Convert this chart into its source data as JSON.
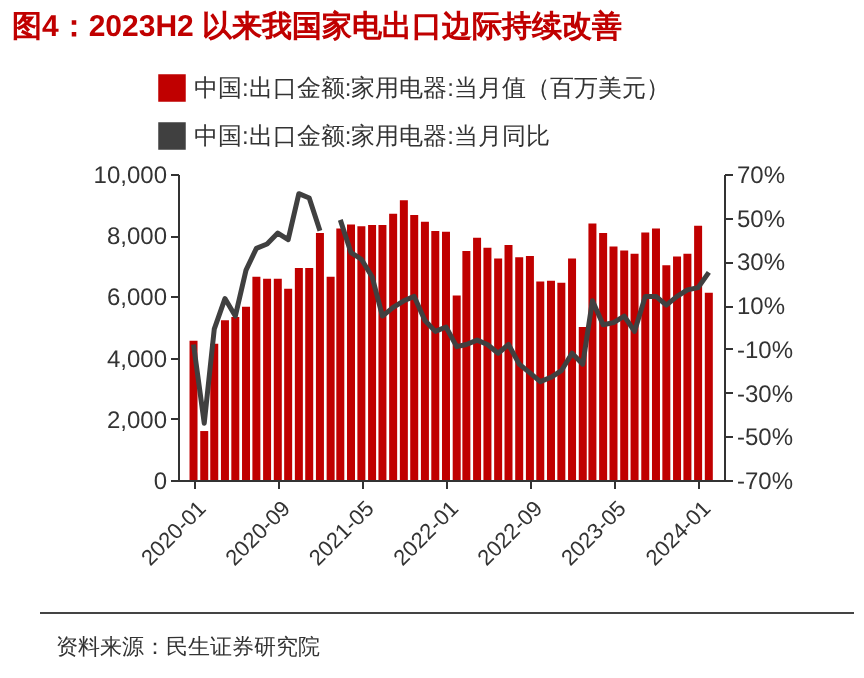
{
  "chart_data": {
    "type": "bar",
    "title": "图4：2023H2 以来我国家电出口边际持续改善",
    "x": [
      "2020-01",
      "2020-02",
      "2020-03",
      "2020-04",
      "2020-05",
      "2020-06",
      "2020-07",
      "2020-08",
      "2020-09",
      "2020-10",
      "2020-11",
      "2020-12",
      "2021-01",
      "2021-02",
      "2021-03",
      "2021-04",
      "2021-05",
      "2021-06",
      "2021-07",
      "2021-08",
      "2021-09",
      "2021-10",
      "2021-11",
      "2021-12",
      "2022-01",
      "2022-02",
      "2022-03",
      "2022-04",
      "2022-05",
      "2022-06",
      "2022-07",
      "2022-08",
      "2022-09",
      "2022-10",
      "2022-11",
      "2022-12",
      "2023-01",
      "2023-02",
      "2023-03",
      "2023-04",
      "2023-05",
      "2023-06",
      "2023-07",
      "2023-08",
      "2023-09",
      "2023-10",
      "2023-11",
      "2023-12",
      "2024-01",
      "2024-02"
    ],
    "series": [
      {
        "name": "中国:出口金额:家用电器:当月值（百万美元）",
        "color": "#c00000",
        "values": [
          4550,
          1600,
          4450,
          5220,
          5330,
          5660,
          6640,
          6580,
          6580,
          6250,
          6930,
          6930,
          8070,
          6640,
          8220,
          8350,
          8290,
          8330,
          8330,
          8700,
          9140,
          8660,
          8440,
          8140,
          8110,
          6030,
          7480,
          7920,
          7590,
          7240,
          7680,
          7280,
          7320,
          6490,
          6510,
          6450,
          7240,
          5000,
          8380,
          8070,
          7630,
          7500,
          7390,
          8090,
          8220,
          7020,
          7300,
          7390,
          8310,
          6120
        ]
      },
      {
        "name": "中国:出口金额:家用电器:当月同比",
        "type": "line",
        "axis": "y2",
        "color": "#404040",
        "values": [
          -8,
          -44,
          -1,
          13,
          5,
          26,
          36,
          38,
          43,
          40,
          61,
          59,
          44,
          null,
          49,
          34,
          31,
          23,
          5,
          9,
          12,
          14,
          3,
          -2,
          0,
          -9,
          -8,
          -6,
          -8,
          -12,
          -8,
          -17,
          -21,
          -25,
          -23,
          -20,
          -12,
          -17,
          12,
          1,
          2,
          5,
          -2,
          14,
          14,
          10,
          14,
          17,
          18,
          25
        ]
      }
    ],
    "xlim": [
      "2019-12-16",
      "2024-02-16"
    ],
    "xticks": [
      "2020-01",
      "2020-09",
      "2021-05",
      "2022-01",
      "2022-09",
      "2023-05",
      "2024-01"
    ],
    "ylim": [
      0,
      10000
    ],
    "yticks": [
      {
        "value": 0,
        "label": "0"
      },
      {
        "value": 2000,
        "label": "2,000"
      },
      {
        "value": 4000,
        "label": "4,000"
      },
      {
        "value": 6000,
        "label": "6,000"
      },
      {
        "value": 8000,
        "label": "8,000"
      },
      {
        "value": 10000,
        "label": "10,000"
      }
    ],
    "y2lim": [
      -70,
      70
    ],
    "y2ticks": [
      {
        "value": -70,
        "label": "-70%"
      },
      {
        "value": -50,
        "label": "-50%"
      },
      {
        "value": -30,
        "label": "-30%"
      },
      {
        "value": -10,
        "label": "-10%"
      },
      {
        "value": 10,
        "label": "10%"
      },
      {
        "value": 30,
        "label": "30%"
      },
      {
        "value": 50,
        "label": "50%"
      },
      {
        "value": 70,
        "label": "70%"
      }
    ],
    "legend": "top",
    "grid": false,
    "annotations": [
      "资料来源：民生证券研究院"
    ]
  }
}
